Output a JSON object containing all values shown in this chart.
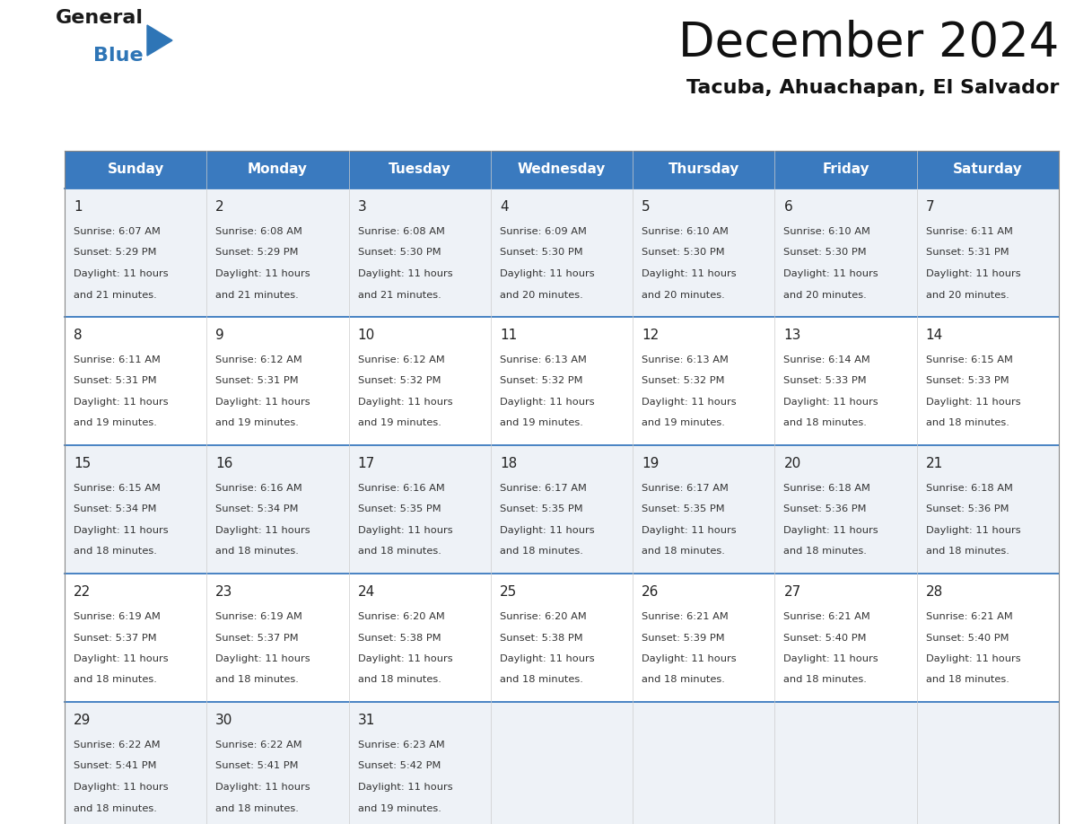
{
  "title": "December 2024",
  "subtitle": "Tacuba, Ahuachapan, El Salvador",
  "header_color": "#3a7abf",
  "header_text_color": "#ffffff",
  "cell_bg_odd": "#eef2f7",
  "cell_bg_even": "#ffffff",
  "days_of_week": [
    "Sunday",
    "Monday",
    "Tuesday",
    "Wednesday",
    "Thursday",
    "Friday",
    "Saturday"
  ],
  "calendar_data": [
    [
      {
        "day": "1",
        "sunrise": "6:07 AM",
        "sunset": "5:29 PM",
        "daylight_l1": "Daylight: 11 hours",
        "daylight_l2": "and 21 minutes."
      },
      {
        "day": "2",
        "sunrise": "6:08 AM",
        "sunset": "5:29 PM",
        "daylight_l1": "Daylight: 11 hours",
        "daylight_l2": "and 21 minutes."
      },
      {
        "day": "3",
        "sunrise": "6:08 AM",
        "sunset": "5:30 PM",
        "daylight_l1": "Daylight: 11 hours",
        "daylight_l2": "and 21 minutes."
      },
      {
        "day": "4",
        "sunrise": "6:09 AM",
        "sunset": "5:30 PM",
        "daylight_l1": "Daylight: 11 hours",
        "daylight_l2": "and 20 minutes."
      },
      {
        "day": "5",
        "sunrise": "6:10 AM",
        "sunset": "5:30 PM",
        "daylight_l1": "Daylight: 11 hours",
        "daylight_l2": "and 20 minutes."
      },
      {
        "day": "6",
        "sunrise": "6:10 AM",
        "sunset": "5:30 PM",
        "daylight_l1": "Daylight: 11 hours",
        "daylight_l2": "and 20 minutes."
      },
      {
        "day": "7",
        "sunrise": "6:11 AM",
        "sunset": "5:31 PM",
        "daylight_l1": "Daylight: 11 hours",
        "daylight_l2": "and 20 minutes."
      }
    ],
    [
      {
        "day": "8",
        "sunrise": "6:11 AM",
        "sunset": "5:31 PM",
        "daylight_l1": "Daylight: 11 hours",
        "daylight_l2": "and 19 minutes."
      },
      {
        "day": "9",
        "sunrise": "6:12 AM",
        "sunset": "5:31 PM",
        "daylight_l1": "Daylight: 11 hours",
        "daylight_l2": "and 19 minutes."
      },
      {
        "day": "10",
        "sunrise": "6:12 AM",
        "sunset": "5:32 PM",
        "daylight_l1": "Daylight: 11 hours",
        "daylight_l2": "and 19 minutes."
      },
      {
        "day": "11",
        "sunrise": "6:13 AM",
        "sunset": "5:32 PM",
        "daylight_l1": "Daylight: 11 hours",
        "daylight_l2": "and 19 minutes."
      },
      {
        "day": "12",
        "sunrise": "6:13 AM",
        "sunset": "5:32 PM",
        "daylight_l1": "Daylight: 11 hours",
        "daylight_l2": "and 19 minutes."
      },
      {
        "day": "13",
        "sunrise": "6:14 AM",
        "sunset": "5:33 PM",
        "daylight_l1": "Daylight: 11 hours",
        "daylight_l2": "and 18 minutes."
      },
      {
        "day": "14",
        "sunrise": "6:15 AM",
        "sunset": "5:33 PM",
        "daylight_l1": "Daylight: 11 hours",
        "daylight_l2": "and 18 minutes."
      }
    ],
    [
      {
        "day": "15",
        "sunrise": "6:15 AM",
        "sunset": "5:34 PM",
        "daylight_l1": "Daylight: 11 hours",
        "daylight_l2": "and 18 minutes."
      },
      {
        "day": "16",
        "sunrise": "6:16 AM",
        "sunset": "5:34 PM",
        "daylight_l1": "Daylight: 11 hours",
        "daylight_l2": "and 18 minutes."
      },
      {
        "day": "17",
        "sunrise": "6:16 AM",
        "sunset": "5:35 PM",
        "daylight_l1": "Daylight: 11 hours",
        "daylight_l2": "and 18 minutes."
      },
      {
        "day": "18",
        "sunrise": "6:17 AM",
        "sunset": "5:35 PM",
        "daylight_l1": "Daylight: 11 hours",
        "daylight_l2": "and 18 minutes."
      },
      {
        "day": "19",
        "sunrise": "6:17 AM",
        "sunset": "5:35 PM",
        "daylight_l1": "Daylight: 11 hours",
        "daylight_l2": "and 18 minutes."
      },
      {
        "day": "20",
        "sunrise": "6:18 AM",
        "sunset": "5:36 PM",
        "daylight_l1": "Daylight: 11 hours",
        "daylight_l2": "and 18 minutes."
      },
      {
        "day": "21",
        "sunrise": "6:18 AM",
        "sunset": "5:36 PM",
        "daylight_l1": "Daylight: 11 hours",
        "daylight_l2": "and 18 minutes."
      }
    ],
    [
      {
        "day": "22",
        "sunrise": "6:19 AM",
        "sunset": "5:37 PM",
        "daylight_l1": "Daylight: 11 hours",
        "daylight_l2": "and 18 minutes."
      },
      {
        "day": "23",
        "sunrise": "6:19 AM",
        "sunset": "5:37 PM",
        "daylight_l1": "Daylight: 11 hours",
        "daylight_l2": "and 18 minutes."
      },
      {
        "day": "24",
        "sunrise": "6:20 AM",
        "sunset": "5:38 PM",
        "daylight_l1": "Daylight: 11 hours",
        "daylight_l2": "and 18 minutes."
      },
      {
        "day": "25",
        "sunrise": "6:20 AM",
        "sunset": "5:38 PM",
        "daylight_l1": "Daylight: 11 hours",
        "daylight_l2": "and 18 minutes."
      },
      {
        "day": "26",
        "sunrise": "6:21 AM",
        "sunset": "5:39 PM",
        "daylight_l1": "Daylight: 11 hours",
        "daylight_l2": "and 18 minutes."
      },
      {
        "day": "27",
        "sunrise": "6:21 AM",
        "sunset": "5:40 PM",
        "daylight_l1": "Daylight: 11 hours",
        "daylight_l2": "and 18 minutes."
      },
      {
        "day": "28",
        "sunrise": "6:21 AM",
        "sunset": "5:40 PM",
        "daylight_l1": "Daylight: 11 hours",
        "daylight_l2": "and 18 minutes."
      }
    ],
    [
      {
        "day": "29",
        "sunrise": "6:22 AM",
        "sunset": "5:41 PM",
        "daylight_l1": "Daylight: 11 hours",
        "daylight_l2": "and 18 minutes."
      },
      {
        "day": "30",
        "sunrise": "6:22 AM",
        "sunset": "5:41 PM",
        "daylight_l1": "Daylight: 11 hours",
        "daylight_l2": "and 18 minutes."
      },
      {
        "day": "31",
        "sunrise": "6:23 AM",
        "sunset": "5:42 PM",
        "daylight_l1": "Daylight: 11 hours",
        "daylight_l2": "and 19 minutes."
      },
      null,
      null,
      null,
      null
    ]
  ],
  "logo_black_color": "#1a1a1a",
  "logo_blue_color": "#2e75b6",
  "bg_color": "#ffffff",
  "fig_width": 11.88,
  "fig_height": 9.18,
  "dpi": 100
}
